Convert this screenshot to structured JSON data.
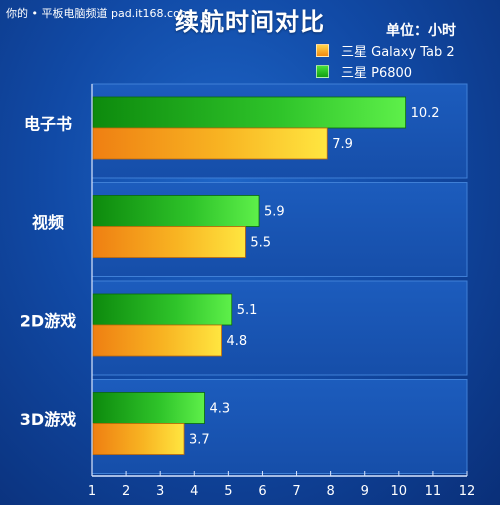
{
  "watermark": "你的 • 平板电脑频道 pad.it168.com",
  "chart_data": {
    "type": "bar",
    "orientation": "horizontal",
    "title": "续航时间对比",
    "unit_label": "单位：小时",
    "categories": [
      "电子书",
      "视频",
      "2D游戏",
      "3D游戏"
    ],
    "series": [
      {
        "name": "三星 P6800",
        "values": [
          10.2,
          5.9,
          5.1,
          4.3
        ],
        "color": "#2fc42a"
      },
      {
        "name": "三星 Galaxy Tab 2",
        "values": [
          7.9,
          5.5,
          4.8,
          3.7
        ],
        "color": "#f7b31c"
      }
    ],
    "legend_order": [
      1,
      0
    ],
    "xlim": [
      1,
      12
    ],
    "xticks": [
      "1",
      "2",
      "3",
      "4",
      "5",
      "6",
      "7",
      "8",
      "9",
      "10",
      "11",
      "12"
    ],
    "legend_placement": "top-right",
    "grid": false
  }
}
